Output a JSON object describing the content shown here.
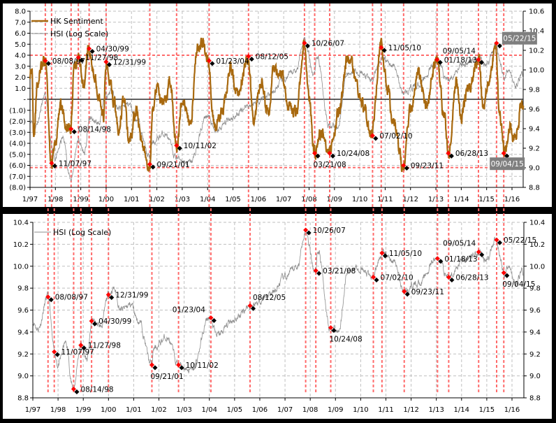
{
  "colors": {
    "sentiment": "#A8690F",
    "hsi": "#8C8C8C",
    "event_red": "#FF0000",
    "event_line": "#FF6B6B",
    "grid": "#BFBFBF",
    "highlight_box": "#7F7F7F"
  },
  "chart_data": [
    {
      "type": "line",
      "title": "",
      "legend": [
        "HK Sentiment",
        "HSI (Log Scale)"
      ],
      "legend_position": "top-left",
      "y_left": {
        "range": [
          -8,
          8
        ],
        "ticks": [
          "8.0",
          "7.0",
          "6.0",
          "5.0",
          "4.0",
          "3.0",
          "2.0",
          "1.0",
          "-",
          "(1.0)",
          "(2.0)",
          "(3.0)",
          "(4.0)",
          "(5.0)",
          "(6.0)",
          "(7.0)",
          "(8.0)"
        ]
      },
      "y_right": {
        "range": [
          8.8,
          10.6
        ],
        "ticks": [
          "10.6",
          "10.4",
          "10.2",
          "10.0",
          "9.8",
          "9.6",
          "9.4",
          "9.2",
          "9.0",
          "8.8"
        ]
      },
      "x_ticks": [
        "1/97",
        "1/98",
        "1/99",
        "1/00",
        "1/01",
        "1/02",
        "1/03",
        "1/04",
        "1/05",
        "1/06",
        "1/07",
        "1/08",
        "1/09",
        "1/10",
        "1/11",
        "1/12",
        "1/13",
        "1/14",
        "1/15",
        "1/16"
      ],
      "threshold_lines": [
        4.0,
        -6.2
      ],
      "grid": true
    },
    {
      "type": "line",
      "title": "",
      "legend": [
        "HSI (Log Scale)"
      ],
      "legend_position": "top-left",
      "y_left": {
        "range": [
          8.8,
          10.4
        ],
        "ticks": [
          "10.4",
          "10.2",
          "10.0",
          "9.8",
          "9.6",
          "9.4",
          "9.2",
          "9.0",
          "8.8"
        ]
      },
      "y_right": {
        "range": [
          8.8,
          10.4
        ],
        "ticks": [
          "10.4",
          "10.2",
          "10.0",
          "9.8",
          "9.6",
          "9.4",
          "9.2",
          "9.0",
          "8.8"
        ]
      },
      "x_ticks": [
        "1/97",
        "1/98",
        "1/99",
        "1/00",
        "1/01",
        "1/02",
        "1/03",
        "1/04",
        "1/05",
        "1/06",
        "1/07",
        "1/08",
        "1/09",
        "1/10",
        "1/11",
        "1/12",
        "1/13",
        "1/14",
        "1/15",
        "1/16"
      ],
      "grid": true
    }
  ],
  "series": {
    "sentiment_keypoints": [
      [
        1997.0,
        2.3
      ],
      [
        1997.08,
        2.6
      ],
      [
        1997.15,
        -3.0
      ],
      [
        1997.3,
        1.5
      ],
      [
        1997.45,
        2.8
      ],
      [
        1997.6,
        3.5
      ],
      [
        1997.85,
        -5.8
      ],
      [
        1998.0,
        -4.0
      ],
      [
        1998.2,
        -0.5
      ],
      [
        1998.45,
        -2.4
      ],
      [
        1998.6,
        -2.7
      ],
      [
        1998.75,
        3.0
      ],
      [
        1998.9,
        3.8
      ],
      [
        1999.1,
        1.0
      ],
      [
        1999.3,
        4.6
      ],
      [
        1999.5,
        2.5
      ],
      [
        1999.7,
        0.5
      ],
      [
        1999.9,
        -1.5
      ],
      [
        2000.0,
        3.4
      ],
      [
        2000.15,
        2.0
      ],
      [
        2000.3,
        0.0
      ],
      [
        2000.5,
        -3.0
      ],
      [
        2000.7,
        0.2
      ],
      [
        2000.9,
        -3.8
      ],
      [
        2001.2,
        -1.0
      ],
      [
        2001.4,
        -4.0
      ],
      [
        2001.72,
        -5.9
      ],
      [
        2001.85,
        -0.5
      ],
      [
        2002.0,
        0.8
      ],
      [
        2002.3,
        -0.5
      ],
      [
        2002.5,
        1.7
      ],
      [
        2002.8,
        -4.2
      ],
      [
        2003.0,
        0.0
      ],
      [
        2003.3,
        -2.5
      ],
      [
        2003.6,
        4.5
      ],
      [
        2003.8,
        5.2
      ],
      [
        2004.0,
        3.5
      ],
      [
        2004.3,
        -2.5
      ],
      [
        2004.6,
        -1.0
      ],
      [
        2004.9,
        2.7
      ],
      [
        2005.2,
        0.5
      ],
      [
        2005.6,
        3.9
      ],
      [
        2005.8,
        -2.1
      ],
      [
        2006.1,
        1.5
      ],
      [
        2006.4,
        -1.2
      ],
      [
        2006.6,
        3.0
      ],
      [
        2006.9,
        2.5
      ],
      [
        2007.2,
        -0.5
      ],
      [
        2007.5,
        -1.5
      ],
      [
        2007.8,
        5.1
      ],
      [
        2008.0,
        0.0
      ],
      [
        2008.2,
        -4.9
      ],
      [
        2008.5,
        -3.0
      ],
      [
        2008.8,
        -4.9
      ],
      [
        2009.2,
        -1.0
      ],
      [
        2009.5,
        3.5
      ],
      [
        2009.6,
        3.9
      ],
      [
        2009.9,
        1.0
      ],
      [
        2010.2,
        -1.0
      ],
      [
        2010.45,
        -3.3
      ],
      [
        2010.85,
        4.7
      ],
      [
        2011.1,
        1.0
      ],
      [
        2011.3,
        -2.0
      ],
      [
        2011.72,
        -6.0
      ],
      [
        2012.0,
        -1.0
      ],
      [
        2012.3,
        2.5
      ],
      [
        2012.6,
        -0.5
      ],
      [
        2013.05,
        3.6
      ],
      [
        2013.3,
        -1.0
      ],
      [
        2013.5,
        -4.9
      ],
      [
        2013.8,
        1.5
      ],
      [
        2014.0,
        -1.5
      ],
      [
        2014.3,
        1.0
      ],
      [
        2014.7,
        3.6
      ],
      [
        2014.85,
        -0.5
      ],
      [
        2015.1,
        1.5
      ],
      [
        2015.35,
        5.1
      ],
      [
        2015.5,
        -1.0
      ],
      [
        2015.7,
        -4.9
      ],
      [
        2015.9,
        -2.5
      ],
      [
        2016.1,
        -3.5
      ],
      [
        2016.4,
        -0.5
      ]
    ],
    "hsi_keypoints": [
      [
        1997.0,
        9.5
      ],
      [
        1997.2,
        9.43
      ],
      [
        1997.6,
        9.72
      ],
      [
        1997.85,
        9.22
      ],
      [
        1998.0,
        9.1
      ],
      [
        1998.3,
        9.3
      ],
      [
        1998.6,
        8.88
      ],
      [
        1998.9,
        9.28
      ],
      [
        1999.15,
        9.15
      ],
      [
        1999.35,
        9.5
      ],
      [
        1999.7,
        9.45
      ],
      [
        2000.0,
        9.74
      ],
      [
        2000.2,
        9.8
      ],
      [
        2000.5,
        9.6
      ],
      [
        2000.9,
        9.65
      ],
      [
        2001.2,
        9.5
      ],
      [
        2001.72,
        9.1
      ],
      [
        2001.8,
        9.25
      ],
      [
        2002.3,
        9.35
      ],
      [
        2002.8,
        9.1
      ],
      [
        2003.3,
        9.05
      ],
      [
        2004.0,
        9.53
      ],
      [
        2004.3,
        9.37
      ],
      [
        2005.0,
        9.52
      ],
      [
        2005.6,
        9.64
      ],
      [
        2006.5,
        9.75
      ],
      [
        2007.0,
        9.9
      ],
      [
        2007.5,
        10.0
      ],
      [
        2007.8,
        10.33
      ],
      [
        2008.2,
        9.96
      ],
      [
        2008.3,
        10.15
      ],
      [
        2008.8,
        9.44
      ],
      [
        2009.1,
        9.4
      ],
      [
        2009.5,
        9.95
      ],
      [
        2009.8,
        10.0
      ],
      [
        2010.45,
        9.9
      ],
      [
        2010.85,
        10.12
      ],
      [
        2011.3,
        10.05
      ],
      [
        2011.72,
        9.77
      ],
      [
        2012.3,
        9.85
      ],
      [
        2013.05,
        10.07
      ],
      [
        2013.5,
        9.9
      ],
      [
        2014.0,
        10.05
      ],
      [
        2014.7,
        10.13
      ],
      [
        2015.0,
        10.05
      ],
      [
        2015.35,
        10.24
      ],
      [
        2015.7,
        9.94
      ],
      [
        2015.9,
        10.0
      ],
      [
        2016.1,
        9.82
      ],
      [
        2016.4,
        9.95
      ]
    ]
  },
  "events": [
    {
      "date": "08/08/97",
      "sentiment": 3.5,
      "hsi": 9.72,
      "top_label": "right",
      "bottom_label": "right"
    },
    {
      "date": "11/07/97",
      "sentiment": -5.8,
      "hsi": 9.22,
      "top_label": "right",
      "bottom_label": "right"
    },
    {
      "date": "08/14/98",
      "sentiment": -2.7,
      "hsi": 8.88,
      "top_label": "right",
      "bottom_label": "right"
    },
    {
      "date": "11/27/98",
      "sentiment": 3.8,
      "hsi": 9.28,
      "top_label": "right",
      "bottom_label": "right"
    },
    {
      "date": "04/30/99",
      "sentiment": 4.6,
      "hsi": 9.5,
      "top_label": "right",
      "bottom_label": "right"
    },
    {
      "date": "12/31/99",
      "sentiment": 3.4,
      "hsi": 9.74,
      "top_label": "right",
      "bottom_label": "right"
    },
    {
      "date": "09/21/01",
      "sentiment": -5.9,
      "hsi": 9.1,
      "top_label": "right",
      "bottom_label": "below"
    },
    {
      "date": "10/11/02",
      "sentiment": -4.2,
      "hsi": 9.1,
      "top_label": "right",
      "bottom_label": "right"
    },
    {
      "date": "01/23/04",
      "sentiment": 3.5,
      "hsi": 9.53,
      "top_label": "right",
      "bottom_label": "above"
    },
    {
      "date": "08/12/05",
      "sentiment": 3.9,
      "hsi": 9.64,
      "top_label": "right",
      "bottom_label": "above"
    },
    {
      "date": "10/26/07",
      "sentiment": 5.1,
      "hsi": 10.33,
      "top_label": "right",
      "bottom_label": "right"
    },
    {
      "date": "03/21/08",
      "sentiment": -4.9,
      "hsi": 9.96,
      "top_label": "below",
      "bottom_label": "right"
    },
    {
      "date": "10/24/08",
      "sentiment": -4.9,
      "hsi": 9.44,
      "top_label": "right",
      "bottom_label": "below"
    },
    {
      "date": "07/02/10",
      "sentiment": -3.3,
      "hsi": 9.9,
      "top_label": "right",
      "bottom_label": "right"
    },
    {
      "date": "11/05/10",
      "sentiment": 4.7,
      "hsi": 10.12,
      "top_label": "right",
      "bottom_label": "right"
    },
    {
      "date": "09/23/11",
      "sentiment": -6.0,
      "hsi": 9.77,
      "top_label": "right",
      "bottom_label": "right"
    },
    {
      "date": "01/18/13",
      "sentiment": 3.6,
      "hsi": 10.07,
      "top_label": "right",
      "bottom_label": "right"
    },
    {
      "date": "06/28/13",
      "sentiment": -4.9,
      "hsi": 9.9,
      "top_label": "right",
      "bottom_label": "right"
    },
    {
      "date": "09/05/14",
      "sentiment": 3.6,
      "hsi": 10.13,
      "top_label": "left",
      "bottom_label": "left"
    },
    {
      "date": "05/22/15",
      "sentiment": 5.1,
      "hsi": 10.24,
      "top_label": "right-highlight",
      "bottom_label": "right"
    },
    {
      "date": "09/04/15",
      "sentiment": -4.9,
      "hsi": 9.94,
      "top_label": "below-highlight",
      "bottom_label": "below"
    }
  ]
}
